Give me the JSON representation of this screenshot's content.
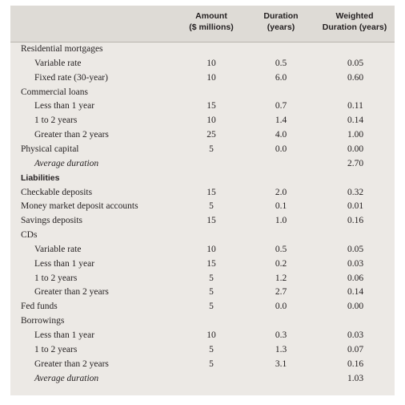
{
  "headers": {
    "amount": "Amount\n($ millions)",
    "duration": "Duration\n(years)",
    "weighted": "Weighted\nDuration (years)"
  },
  "rows": [
    {
      "label": "Residential mortgages",
      "indent": 0,
      "style": "",
      "amount": "",
      "duration": "",
      "weighted": ""
    },
    {
      "label": "Variable rate",
      "indent": 1,
      "style": "",
      "amount": "10",
      "duration": "0.5",
      "weighted": "0.05"
    },
    {
      "label": "Fixed rate (30-year)",
      "indent": 1,
      "style": "",
      "amount": "10",
      "duration": "6.0",
      "weighted": "0.60"
    },
    {
      "label": "Commercial loans",
      "indent": 0,
      "style": "",
      "amount": "",
      "duration": "",
      "weighted": ""
    },
    {
      "label": "Less than 1 year",
      "indent": 1,
      "style": "",
      "amount": "15",
      "duration": "0.7",
      "weighted": "0.11"
    },
    {
      "label": "1 to 2 years",
      "indent": 1,
      "style": "",
      "amount": "10",
      "duration": "1.4",
      "weighted": "0.14"
    },
    {
      "label": "Greater than 2 years",
      "indent": 1,
      "style": "",
      "amount": "25",
      "duration": "4.0",
      "weighted": "1.00"
    },
    {
      "label": "Physical capital",
      "indent": 0,
      "style": "",
      "amount": "5",
      "duration": "0.0",
      "weighted": "0.00"
    },
    {
      "label": "Average duration",
      "indent": 1,
      "style": "italic",
      "amount": "",
      "duration": "",
      "weighted": "2.70"
    },
    {
      "label": "Liabilities",
      "indent": 0,
      "style": "bold",
      "amount": "",
      "duration": "",
      "weighted": ""
    },
    {
      "label": "Checkable deposits",
      "indent": 0,
      "style": "",
      "amount": "15",
      "duration": "2.0",
      "weighted": "0.32"
    },
    {
      "label": "Money market deposit accounts",
      "indent": 0,
      "style": "",
      "amount": "5",
      "duration": "0.1",
      "weighted": "0.01"
    },
    {
      "label": "Savings deposits",
      "indent": 0,
      "style": "",
      "amount": "15",
      "duration": "1.0",
      "weighted": "0.16"
    },
    {
      "label": "CDs",
      "indent": 0,
      "style": "",
      "amount": "",
      "duration": "",
      "weighted": ""
    },
    {
      "label": "Variable rate",
      "indent": 1,
      "style": "",
      "amount": "10",
      "duration": "0.5",
      "weighted": "0.05"
    },
    {
      "label": "Less than 1 year",
      "indent": 1,
      "style": "",
      "amount": "15",
      "duration": "0.2",
      "weighted": "0.03"
    },
    {
      "label": "1 to 2 years",
      "indent": 1,
      "style": "",
      "amount": "5",
      "duration": "1.2",
      "weighted": "0.06"
    },
    {
      "label": "Greater than 2 years",
      "indent": 1,
      "style": "",
      "amount": "5",
      "duration": "2.7",
      "weighted": "0.14"
    },
    {
      "label": "Fed funds",
      "indent": 0,
      "style": "",
      "amount": "5",
      "duration": "0.0",
      "weighted": "0.00"
    },
    {
      "label": "Borrowings",
      "indent": 0,
      "style": "",
      "amount": "",
      "duration": "",
      "weighted": ""
    },
    {
      "label": "Less than 1 year",
      "indent": 1,
      "style": "",
      "amount": "10",
      "duration": "0.3",
      "weighted": "0.03"
    },
    {
      "label": "1 to 2 years",
      "indent": 1,
      "style": "",
      "amount": "5",
      "duration": "1.3",
      "weighted": "0.07"
    },
    {
      "label": "Greater than 2 years",
      "indent": 1,
      "style": "",
      "amount": "5",
      "duration": "3.1",
      "weighted": "0.16"
    },
    {
      "label": "Average duration",
      "indent": 1,
      "style": "italic",
      "amount": "",
      "duration": "",
      "weighted": "1.03"
    }
  ]
}
